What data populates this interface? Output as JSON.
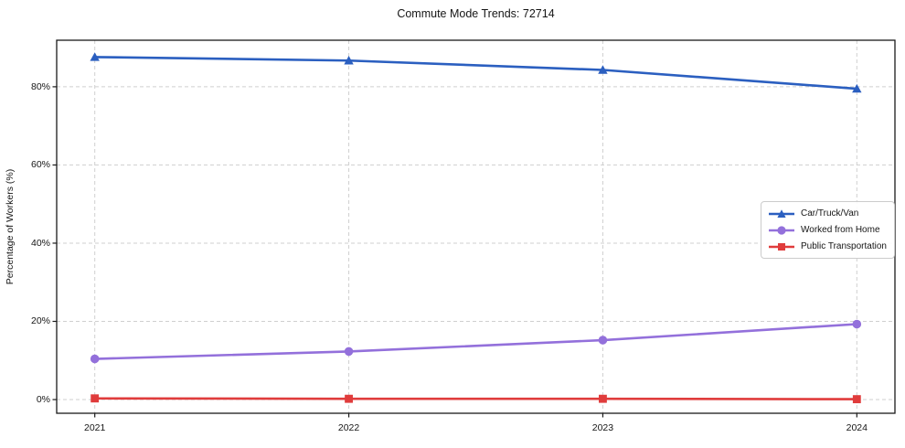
{
  "chart_data": {
    "type": "line",
    "title": "Commute Mode Trends: 72714",
    "xlabel": "",
    "ylabel": "Percentage of Workers (%)",
    "x": [
      2021,
      2022,
      2023,
      2024
    ],
    "x_tick_labels": [
      "2021",
      "2022",
      "2023",
      "2024"
    ],
    "y_ticks": [
      0,
      20,
      40,
      60,
      80
    ],
    "y_tick_labels": [
      "0%",
      "20%",
      "40%",
      "60%",
      "80%"
    ],
    "xlim": [
      2020.85,
      2024.15
    ],
    "ylim": [
      -3.5,
      91.9
    ],
    "grid": true,
    "grid_style": "dashed",
    "legend_position": "center right",
    "series": [
      {
        "name": "Car/Truck/Van",
        "color": "#2b5fc0",
        "marker": "triangle",
        "values": [
          87.6,
          86.7,
          84.3,
          79.5
        ]
      },
      {
        "name": "Worked from Home",
        "color": "#9370db",
        "marker": "circle",
        "values": [
          10.4,
          12.3,
          15.2,
          19.3
        ]
      },
      {
        "name": "Public Transportation",
        "color": "#e03c3c",
        "marker": "square",
        "values": [
          0.3,
          0.2,
          0.2,
          0.1
        ]
      }
    ],
    "colors": {
      "frame": "#1a1a1a",
      "grid": "#cfcfcf",
      "text": "#151515",
      "background": "#ffffff"
    }
  }
}
